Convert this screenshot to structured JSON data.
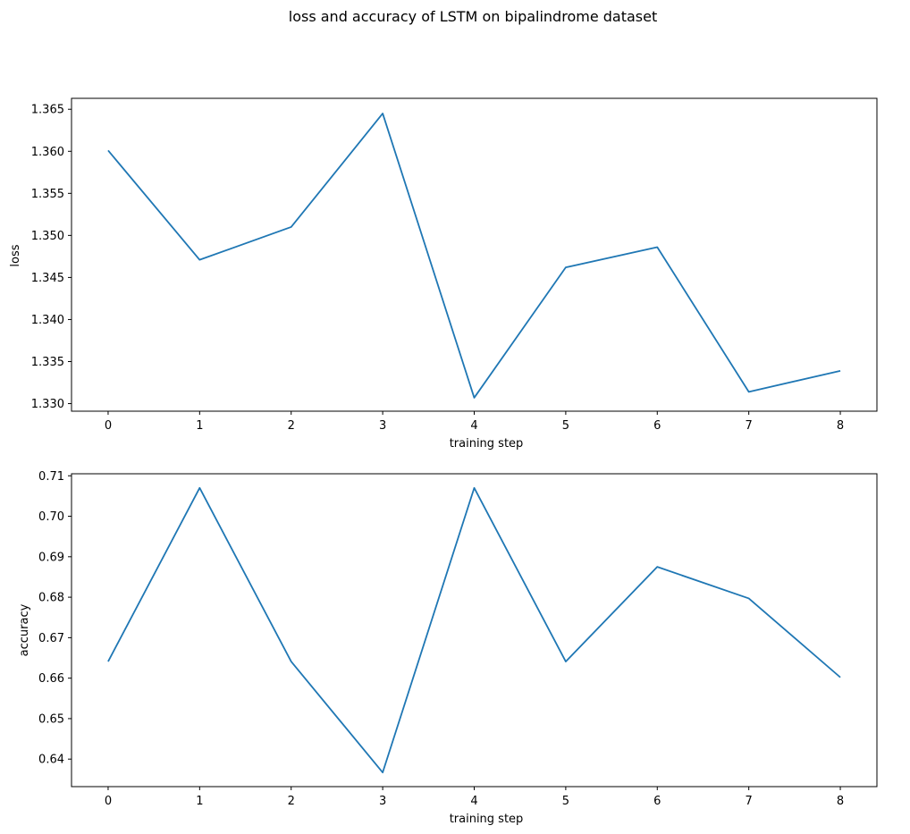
{
  "figure": {
    "title": "loss and accuracy of LSTM on bipalindrome dataset"
  },
  "colors": {
    "series": "#1f77b4",
    "axes": "#000000",
    "background": "#ffffff"
  },
  "chart_data": [
    {
      "id": "loss",
      "type": "line",
      "xlabel": "training step",
      "ylabel": "loss",
      "grid": false,
      "x": [
        0,
        1,
        2,
        3,
        4,
        5,
        6,
        7,
        8
      ],
      "values": [
        1.3601,
        1.3471,
        1.351,
        1.3645,
        1.3307,
        1.3462,
        1.3486,
        1.3314,
        1.3339
      ],
      "xlim": [
        -0.4,
        8.4
      ],
      "ylim": [
        1.3291,
        1.3663
      ],
      "xticks": [
        "0",
        "1",
        "2",
        "3",
        "4",
        "5",
        "6",
        "7",
        "8"
      ],
      "yticks": [
        "1.330",
        "1.335",
        "1.340",
        "1.345",
        "1.350",
        "1.355",
        "1.360",
        "1.365"
      ]
    },
    {
      "id": "accuracy",
      "type": "line",
      "xlabel": "training step",
      "ylabel": "accuracy",
      "grid": false,
      "x": [
        0,
        1,
        2,
        3,
        4,
        5,
        6,
        7,
        8
      ],
      "values": [
        0.6641,
        0.707,
        0.6641,
        0.6367,
        0.707,
        0.6641,
        0.6875,
        0.6797,
        0.6602
      ],
      "xlim": [
        -0.4,
        8.4
      ],
      "ylim": [
        0.6332,
        0.7105
      ],
      "xticks": [
        "0",
        "1",
        "2",
        "3",
        "4",
        "5",
        "6",
        "7",
        "8"
      ],
      "yticks": [
        "0.64",
        "0.65",
        "0.66",
        "0.67",
        "0.68",
        "0.69",
        "0.70",
        "0.71"
      ]
    }
  ]
}
